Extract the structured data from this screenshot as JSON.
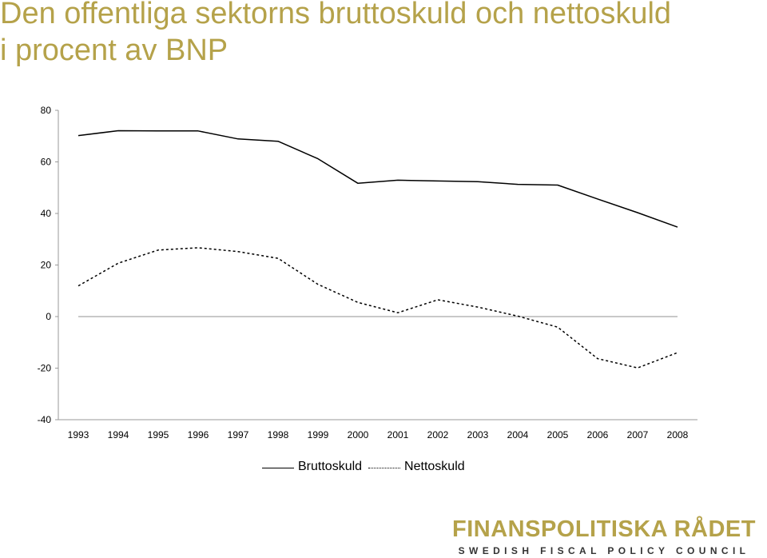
{
  "header": {
    "title_line1": "Den offentliga sektorns bruttoskuld och nettoskuld",
    "title_line2": "i procent av BNP"
  },
  "colors": {
    "title": "#b5a24a",
    "series": "#000000",
    "zero_line": "#a6a6a6"
  },
  "chart_data": {
    "type": "line",
    "title": "Den offentliga sektorns bruttoskuld och nettoskuld i procent av BNP",
    "categories": [
      "1993",
      "1994",
      "1995",
      "1996",
      "1997",
      "1998",
      "1999",
      "2000",
      "2001",
      "2002",
      "2003",
      "2004",
      "2005",
      "2006",
      "2007",
      "2008"
    ],
    "ylim": [
      -40,
      80
    ],
    "yticks": [
      "80",
      "60",
      "40",
      "20",
      "0",
      "-20",
      "-40"
    ],
    "ytick_values": [
      80,
      60,
      40,
      20,
      0,
      -20,
      -40
    ],
    "legend_position": "bottom",
    "series": [
      {
        "name": "Bruttoskuld",
        "style": "solid",
        "values": [
          70.2,
          72.1,
          72.0,
          72.0,
          68.9,
          68.0,
          61.2,
          51.7,
          52.9,
          52.6,
          52.3,
          51.3,
          51.0,
          45.6,
          40.3,
          34.7
        ]
      },
      {
        "name": "Nettoskuld",
        "style": "dotted",
        "values": [
          11.9,
          20.7,
          25.8,
          26.7,
          25.2,
          22.6,
          12.5,
          5.5,
          1.5,
          6.5,
          3.7,
          0.2,
          -4.1,
          -16.3,
          -19.9,
          -14.0
        ]
      }
    ]
  },
  "legend": {
    "items": [
      "Bruttoskuld",
      "Nettoskuld"
    ]
  },
  "logo": {
    "main": "FINANSPOLITISKA RÅDET",
    "sub": "SWEDISH FISCAL POLICY COUNCIL"
  }
}
